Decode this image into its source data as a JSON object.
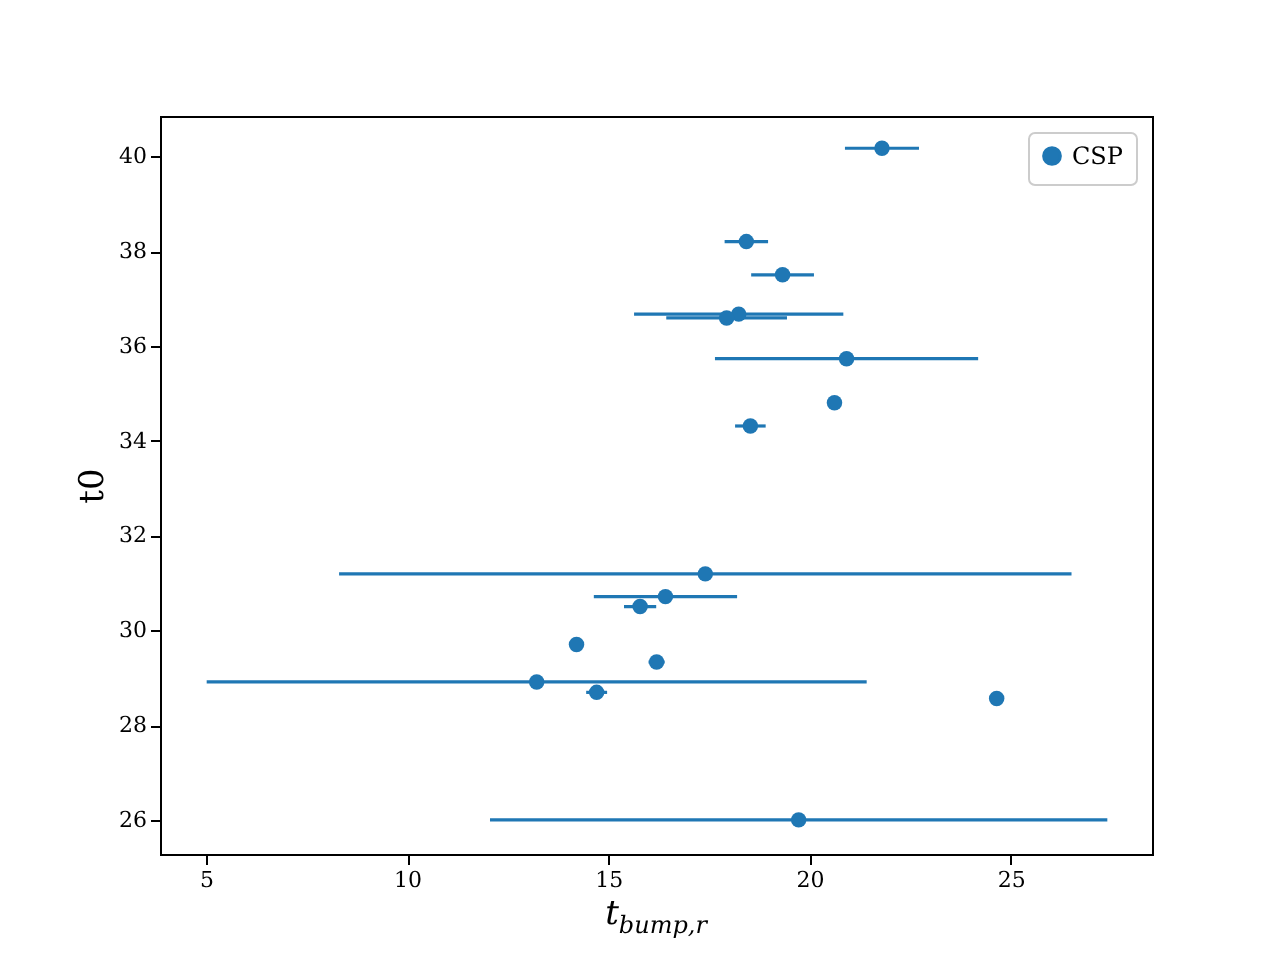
{
  "chart_data": {
    "type": "scatter",
    "xlabel": "t$_{bump,r}$",
    "ylabel": "t0",
    "x": [
      21.8,
      18.43,
      19.33,
      18.24,
      17.94,
      20.92,
      20.62,
      18.53,
      17.41,
      16.42,
      15.79,
      14.21,
      16.2,
      13.22,
      14.71,
      24.65,
      19.73
    ],
    "series": [
      {
        "name": "CSP",
        "color": "#1f77b4",
        "values": [
          40.17,
          38.2,
          37.5,
          36.67,
          36.59,
          35.73,
          34.8,
          34.31,
          31.19,
          30.71,
          30.5,
          29.7,
          29.33,
          28.91,
          28.69,
          28.56,
          26.0
        ],
        "xerrors": [
          0.92,
          0.54,
          0.78,
          2.6,
          1.5,
          3.27,
          null,
          0.38,
          9.1,
          1.78,
          0.4,
          null,
          0.2,
          8.2,
          0.26,
          null,
          7.67
        ]
      }
    ],
    "xlim": [
      3.86,
      28.51
    ],
    "ylim": [
      25.28,
      40.85
    ],
    "xticks": [
      5,
      10,
      15,
      20,
      25
    ],
    "yticks": [
      26,
      28,
      30,
      32,
      34,
      36,
      38,
      40
    ],
    "marker": "circle",
    "legend": "top right",
    "grid": false
  }
}
